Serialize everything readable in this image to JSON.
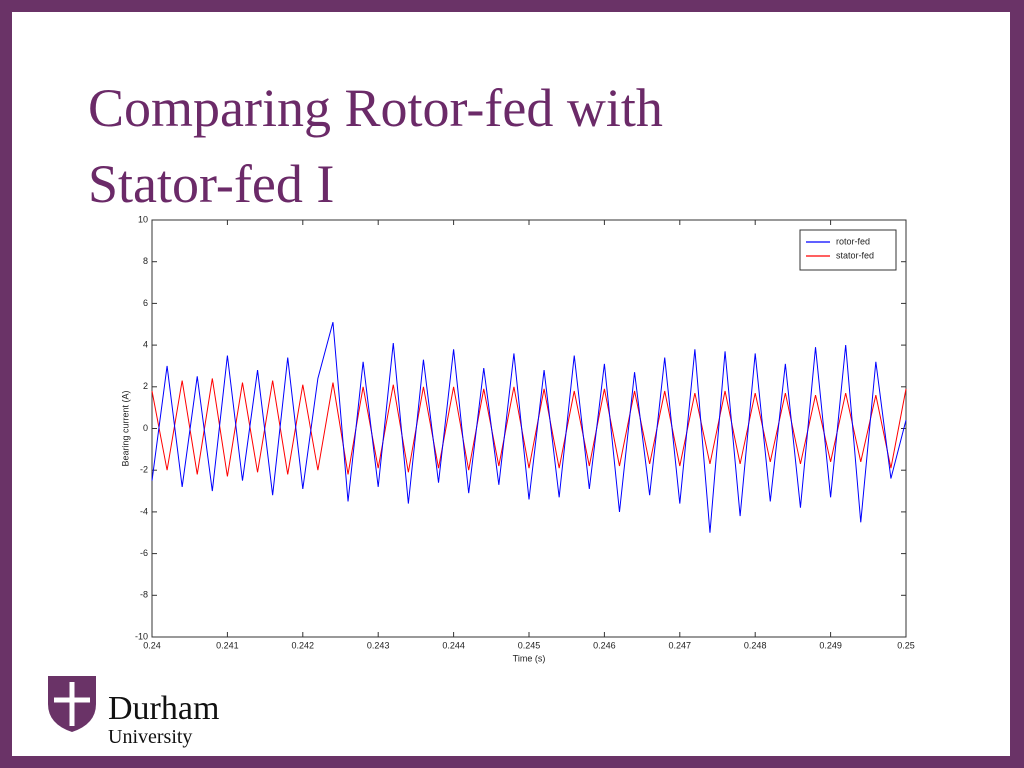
{
  "slide_title": "Comparing Rotor-fed with Stator-fed I",
  "logo": {
    "name": "Durham",
    "subtitle": "University"
  },
  "chart_data": {
    "type": "line",
    "xlabel": "Time (s)",
    "ylabel": "Bearing current (A)",
    "x": [
      0.24,
      0.2402,
      0.2404,
      0.2406,
      0.2408,
      0.241,
      0.2412,
      0.2414,
      0.2416,
      0.2418,
      0.242,
      0.2422,
      0.2424,
      0.2426,
      0.2428,
      0.243,
      0.2432,
      0.2434,
      0.2436,
      0.2438,
      0.244,
      0.2442,
      0.2444,
      0.2446,
      0.2448,
      0.245,
      0.2452,
      0.2454,
      0.2456,
      0.2458,
      0.246,
      0.2462,
      0.2464,
      0.2466,
      0.2468,
      0.247,
      0.2472,
      0.2474,
      0.2476,
      0.2478,
      0.248,
      0.2482,
      0.2484,
      0.2486,
      0.2488,
      0.249,
      0.2492,
      0.2494,
      0.2496,
      0.2498,
      0.25
    ],
    "series": [
      {
        "name": "rotor-fed",
        "color": "#0000ff",
        "values": [
          -2.5,
          3,
          -2.8,
          2.5,
          -3,
          3.5,
          -2.5,
          2.8,
          -3.2,
          3.4,
          -2.9,
          2.4,
          5.1,
          -3.5,
          3.2,
          -2.8,
          4.1,
          -3.6,
          3.3,
          -2.6,
          3.8,
          -3.1,
          2.9,
          -2.7,
          3.6,
          -3.4,
          2.8,
          -3.3,
          3.5,
          -2.9,
          3.1,
          -4,
          2.7,
          -3.2,
          3.4,
          -3.6,
          3.8,
          -5,
          3.7,
          -4.2,
          3.6,
          -3.5,
          3.1,
          -3.8,
          3.9,
          -3.3,
          4,
          -4.5,
          3.2,
          -2.4,
          0.4
        ]
      },
      {
        "name": "stator-fed",
        "color": "#ff0000",
        "values": [
          1.8,
          -2,
          2.3,
          -2.2,
          2.4,
          -2.3,
          2.2,
          -2.1,
          2.3,
          -2.2,
          2.1,
          -2.0,
          2.2,
          -2.2,
          2.0,
          -1.9,
          2.1,
          -2.1,
          2.0,
          -1.9,
          2.0,
          -2.0,
          1.9,
          -1.8,
          2.0,
          -1.9,
          1.9,
          -1.9,
          1.8,
          -1.8,
          1.9,
          -1.8,
          1.8,
          -1.7,
          1.8,
          -1.8,
          1.7,
          -1.7,
          1.8,
          -1.7,
          1.7,
          -1.6,
          1.7,
          -1.7,
          1.6,
          -1.6,
          1.7,
          -1.6,
          1.6,
          -1.9,
          1.9
        ]
      }
    ],
    "xlim": [
      0.24,
      0.25
    ],
    "xticks": [
      0.24,
      0.241,
      0.242,
      0.243,
      0.244,
      0.245,
      0.246,
      0.247,
      0.248,
      0.249,
      0.25
    ],
    "ylim": [
      -10,
      10
    ],
    "yticks": [
      -10,
      -8,
      -6,
      -4,
      -2,
      0,
      2,
      4,
      6,
      8,
      10
    ],
    "legend": "upper right"
  }
}
